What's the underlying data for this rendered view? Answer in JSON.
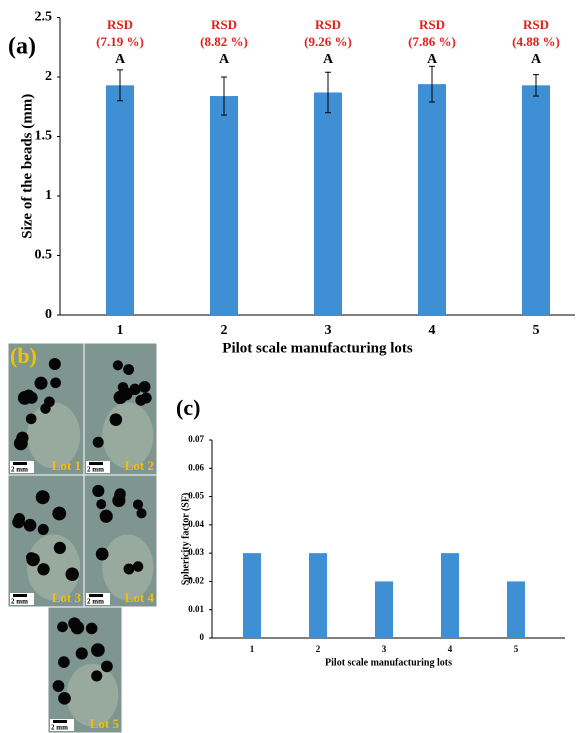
{
  "chart_data": [
    {
      "type": "bar",
      "panel_label": "(a)",
      "x_label": "Pilot scale manufacturing lots",
      "y_label": "Size of the beads (mm)",
      "categories": [
        "1",
        "2",
        "3",
        "4",
        "5"
      ],
      "values": [
        1.93,
        1.84,
        1.87,
        1.94,
        1.93
      ],
      "errors": [
        0.13,
        0.16,
        0.17,
        0.15,
        0.09
      ],
      "annotations": [
        {
          "rsd": "RSD",
          "cv": "(7.19 %)",
          "group": "A"
        },
        {
          "rsd": "RSD",
          "cv": "(8.82 %)",
          "group": "A"
        },
        {
          "rsd": "RSD",
          "cv": "(9.26 %)",
          "group": "A"
        },
        {
          "rsd": "RSD",
          "cv": "(7.86 %)",
          "group": "A"
        },
        {
          "rsd": "RSD",
          "cv": "(4.88 %)",
          "group": "A"
        }
      ],
      "color": "#3f8fd4",
      "ylim": [
        0,
        2.5
      ],
      "yticks": [
        0,
        0.5,
        1,
        1.5,
        2,
        2.5
      ]
    },
    {
      "type": "bar",
      "panel_label": "(c)",
      "x_label": "Pilot scale manufacturing lots",
      "y_label": "Sphericity factor (SF)",
      "categories": [
        "1",
        "2",
        "3",
        "4",
        "5"
      ],
      "values": [
        0.03,
        0.03,
        0.02,
        0.03,
        0.02
      ],
      "color": "#3f8fd4",
      "ylim": [
        0,
        0.07
      ],
      "yticks": [
        0,
        0.01,
        0.02,
        0.03,
        0.04,
        0.05,
        0.06,
        0.07
      ]
    }
  ],
  "images": {
    "panel_label": "(b)",
    "lots": [
      {
        "label": "Lot 1",
        "scale": "2 mm"
      },
      {
        "label": "Lot 2",
        "scale": "2 mm"
      },
      {
        "label": "Lot 3",
        "scale": "2 mm"
      },
      {
        "label": "Lot 4",
        "scale": "2 mm"
      },
      {
        "label": "Lot 5",
        "scale": "2 mm"
      }
    ]
  }
}
